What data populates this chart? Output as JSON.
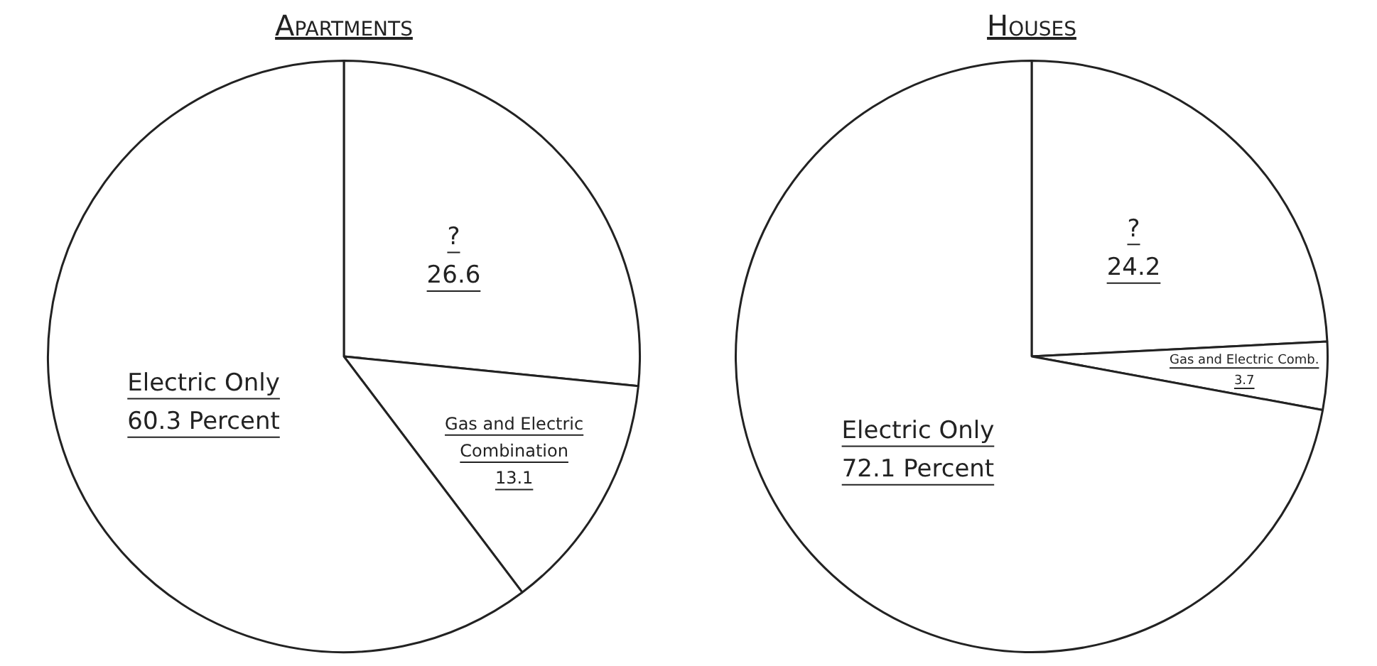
{
  "chart_data": [
    {
      "type": "pie",
      "title": "Apartments",
      "categories": [
        "?",
        "Gas and Electric Combination",
        "Electric Only"
      ],
      "values": [
        26.6,
        13.1,
        60.3
      ],
      "value_labels": [
        "26.6",
        "13.1",
        "60.3 Percent"
      ],
      "colors": [
        "#ffffff",
        "#ffffff",
        "#ffffff"
      ],
      "legend": false
    },
    {
      "type": "pie",
      "title": "Houses",
      "categories": [
        "?",
        "Gas and Electric Comb.",
        "Electric Only"
      ],
      "values": [
        24.2,
        3.7,
        72.1
      ],
      "value_labels": [
        "24.2",
        "3.7",
        "72.1 Percent"
      ],
      "colors": [
        "#ffffff",
        "#ffffff",
        "#ffffff"
      ],
      "legend": false
    }
  ]
}
